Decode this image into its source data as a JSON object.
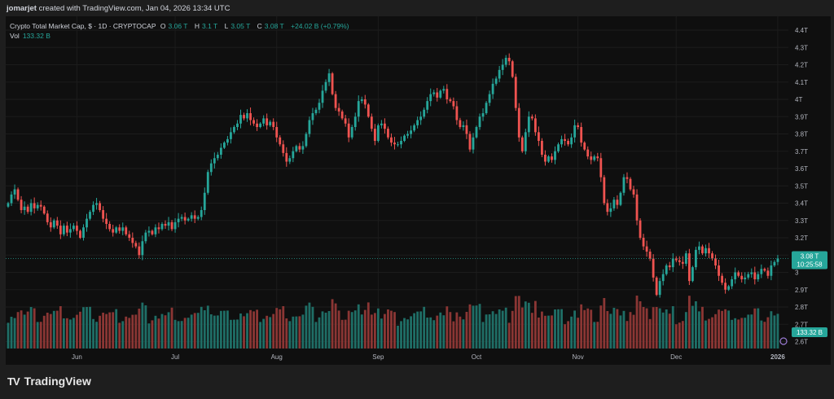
{
  "header": {
    "user": "jomarjet",
    "text": "created with TradingView.com, Jan 04, 2026 13:34 UTC"
  },
  "legend": {
    "symbol": "Crypto Total Market Cap, $ · 1D · CRYPTOCAP",
    "o_label": "O",
    "o_value": "3.06 T",
    "h_label": "H",
    "h_value": "3.1 T",
    "l_label": "L",
    "l_value": "3.05 T",
    "c_label": "C",
    "c_value": "3.08 T",
    "change": "+24.02 B (+0.79%)",
    "vol_label": "Vol",
    "vol_value": "133.32 B"
  },
  "price_badge": {
    "price": "3.08 T",
    "countdown": "10:25:58"
  },
  "volume_badge": "133.32 B",
  "brand": {
    "name": "TradingView",
    "logo": "TV"
  },
  "colors": {
    "up": "#26a69a",
    "down": "#ef5350",
    "volume_up": "#1f6e66",
    "volume_down": "#8b3634",
    "background": "#0f0f0f",
    "grid": "#1c1c1c",
    "price_line": "#26a69a"
  },
  "chart_data": {
    "type": "candlestick",
    "title": "Crypto Total Market Cap, $ · 1D · CRYPTOCAP",
    "y_unit": "T",
    "ylim": [
      2.56,
      4.48
    ],
    "y_ticks": [
      "4.4T",
      "4.3T",
      "4.2T",
      "4.1T",
      "4T",
      "3.9T",
      "3.8T",
      "3.7T",
      "3.6T",
      "3.5T",
      "3.4T",
      "3.3T",
      "3.2T",
      "3.1T",
      "3",
      "2.9T",
      "2.8T",
      "2.7T",
      "2.6T"
    ],
    "y_tick_values": [
      4.4,
      4.3,
      4.2,
      4.1,
      4.0,
      3.9,
      3.8,
      3.7,
      3.6,
      3.5,
      3.4,
      3.3,
      3.2,
      3.1,
      3.0,
      2.9,
      2.8,
      2.7,
      2.6
    ],
    "x_ticks": [
      {
        "label": "Jun",
        "date": "2025-06-01"
      },
      {
        "label": "Jul",
        "date": "2025-07-01"
      },
      {
        "label": "Aug",
        "date": "2025-08-01"
      },
      {
        "label": "Sep",
        "date": "2025-09-01"
      },
      {
        "label": "Oct",
        "date": "2025-10-01"
      },
      {
        "label": "Nov",
        "date": "2025-11-01"
      },
      {
        "label": "Dec",
        "date": "2025-12-01"
      },
      {
        "label": "2026",
        "date": "2026-01-01",
        "bold": true
      }
    ],
    "start_date": "2025-05-11",
    "end_date": "2026-01-04",
    "closes": [
      3.4,
      3.45,
      3.48,
      3.42,
      3.36,
      3.38,
      3.35,
      3.4,
      3.37,
      3.39,
      3.38,
      3.34,
      3.29,
      3.26,
      3.3,
      3.27,
      3.22,
      3.27,
      3.23,
      3.25,
      3.27,
      3.24,
      3.2,
      3.26,
      3.31,
      3.35,
      3.39,
      3.4,
      3.36,
      3.31,
      3.28,
      3.25,
      3.23,
      3.26,
      3.24,
      3.26,
      3.22,
      3.2,
      3.17,
      3.15,
      3.1,
      3.18,
      3.23,
      3.24,
      3.22,
      3.26,
      3.25,
      3.28,
      3.27,
      3.29,
      3.25,
      3.29,
      3.31,
      3.32,
      3.3,
      3.31,
      3.33,
      3.31,
      3.32,
      3.36,
      3.46,
      3.58,
      3.63,
      3.66,
      3.68,
      3.72,
      3.75,
      3.77,
      3.81,
      3.84,
      3.86,
      3.91,
      3.89,
      3.92,
      3.88,
      3.86,
      3.84,
      3.86,
      3.89,
      3.85,
      3.87,
      3.84,
      3.78,
      3.74,
      3.69,
      3.64,
      3.66,
      3.7,
      3.73,
      3.71,
      3.73,
      3.8,
      3.88,
      3.92,
      3.94,
      3.98,
      4.05,
      4.1,
      4.15,
      4.03,
      3.95,
      3.93,
      3.89,
      3.86,
      3.78,
      3.84,
      3.9,
      3.99,
      4.0,
      3.97,
      3.9,
      3.83,
      3.76,
      3.85,
      3.86,
      3.83,
      3.78,
      3.75,
      3.74,
      3.74,
      3.76,
      3.79,
      3.8,
      3.82,
      3.85,
      3.88,
      3.9,
      3.94,
      3.99,
      4.03,
      4.04,
      4.01,
      4.05,
      4.06,
      4.0,
      3.99,
      3.96,
      3.88,
      3.84,
      3.85,
      3.8,
      3.71,
      3.78,
      3.84,
      3.9,
      3.92,
      3.98,
      4.03,
      4.09,
      4.12,
      4.17,
      4.2,
      4.24,
      4.22,
      4.13,
      3.95,
      3.78,
      3.7,
      3.81,
      3.9,
      3.89,
      3.81,
      3.76,
      3.68,
      3.64,
      3.67,
      3.65,
      3.7,
      3.74,
      3.77,
      3.76,
      3.74,
      3.78,
      3.85,
      3.84,
      3.75,
      3.71,
      3.67,
      3.65,
      3.67,
      3.66,
      3.55,
      3.4,
      3.35,
      3.37,
      3.42,
      3.39,
      3.46,
      3.55,
      3.54,
      3.48,
      3.45,
      3.3,
      3.2,
      3.15,
      3.12,
      3.08,
      2.97,
      2.87,
      2.95,
      2.99,
      3.04,
      3.03,
      3.08,
      3.07,
      3.06,
      3.05,
      3.11,
      2.95,
      3.03,
      3.13,
      3.15,
      3.11,
      3.14,
      3.11,
      3.08,
      3.04,
      2.98,
      2.94,
      2.9,
      2.92,
      2.96,
      3.0,
      2.98,
      2.96,
      2.97,
      2.99,
      3.0,
      2.96,
      2.99,
      3.02,
      3.01,
      2.98,
      3.04,
      3.06,
      3.08
    ],
    "price_line_value": 3.08
  }
}
